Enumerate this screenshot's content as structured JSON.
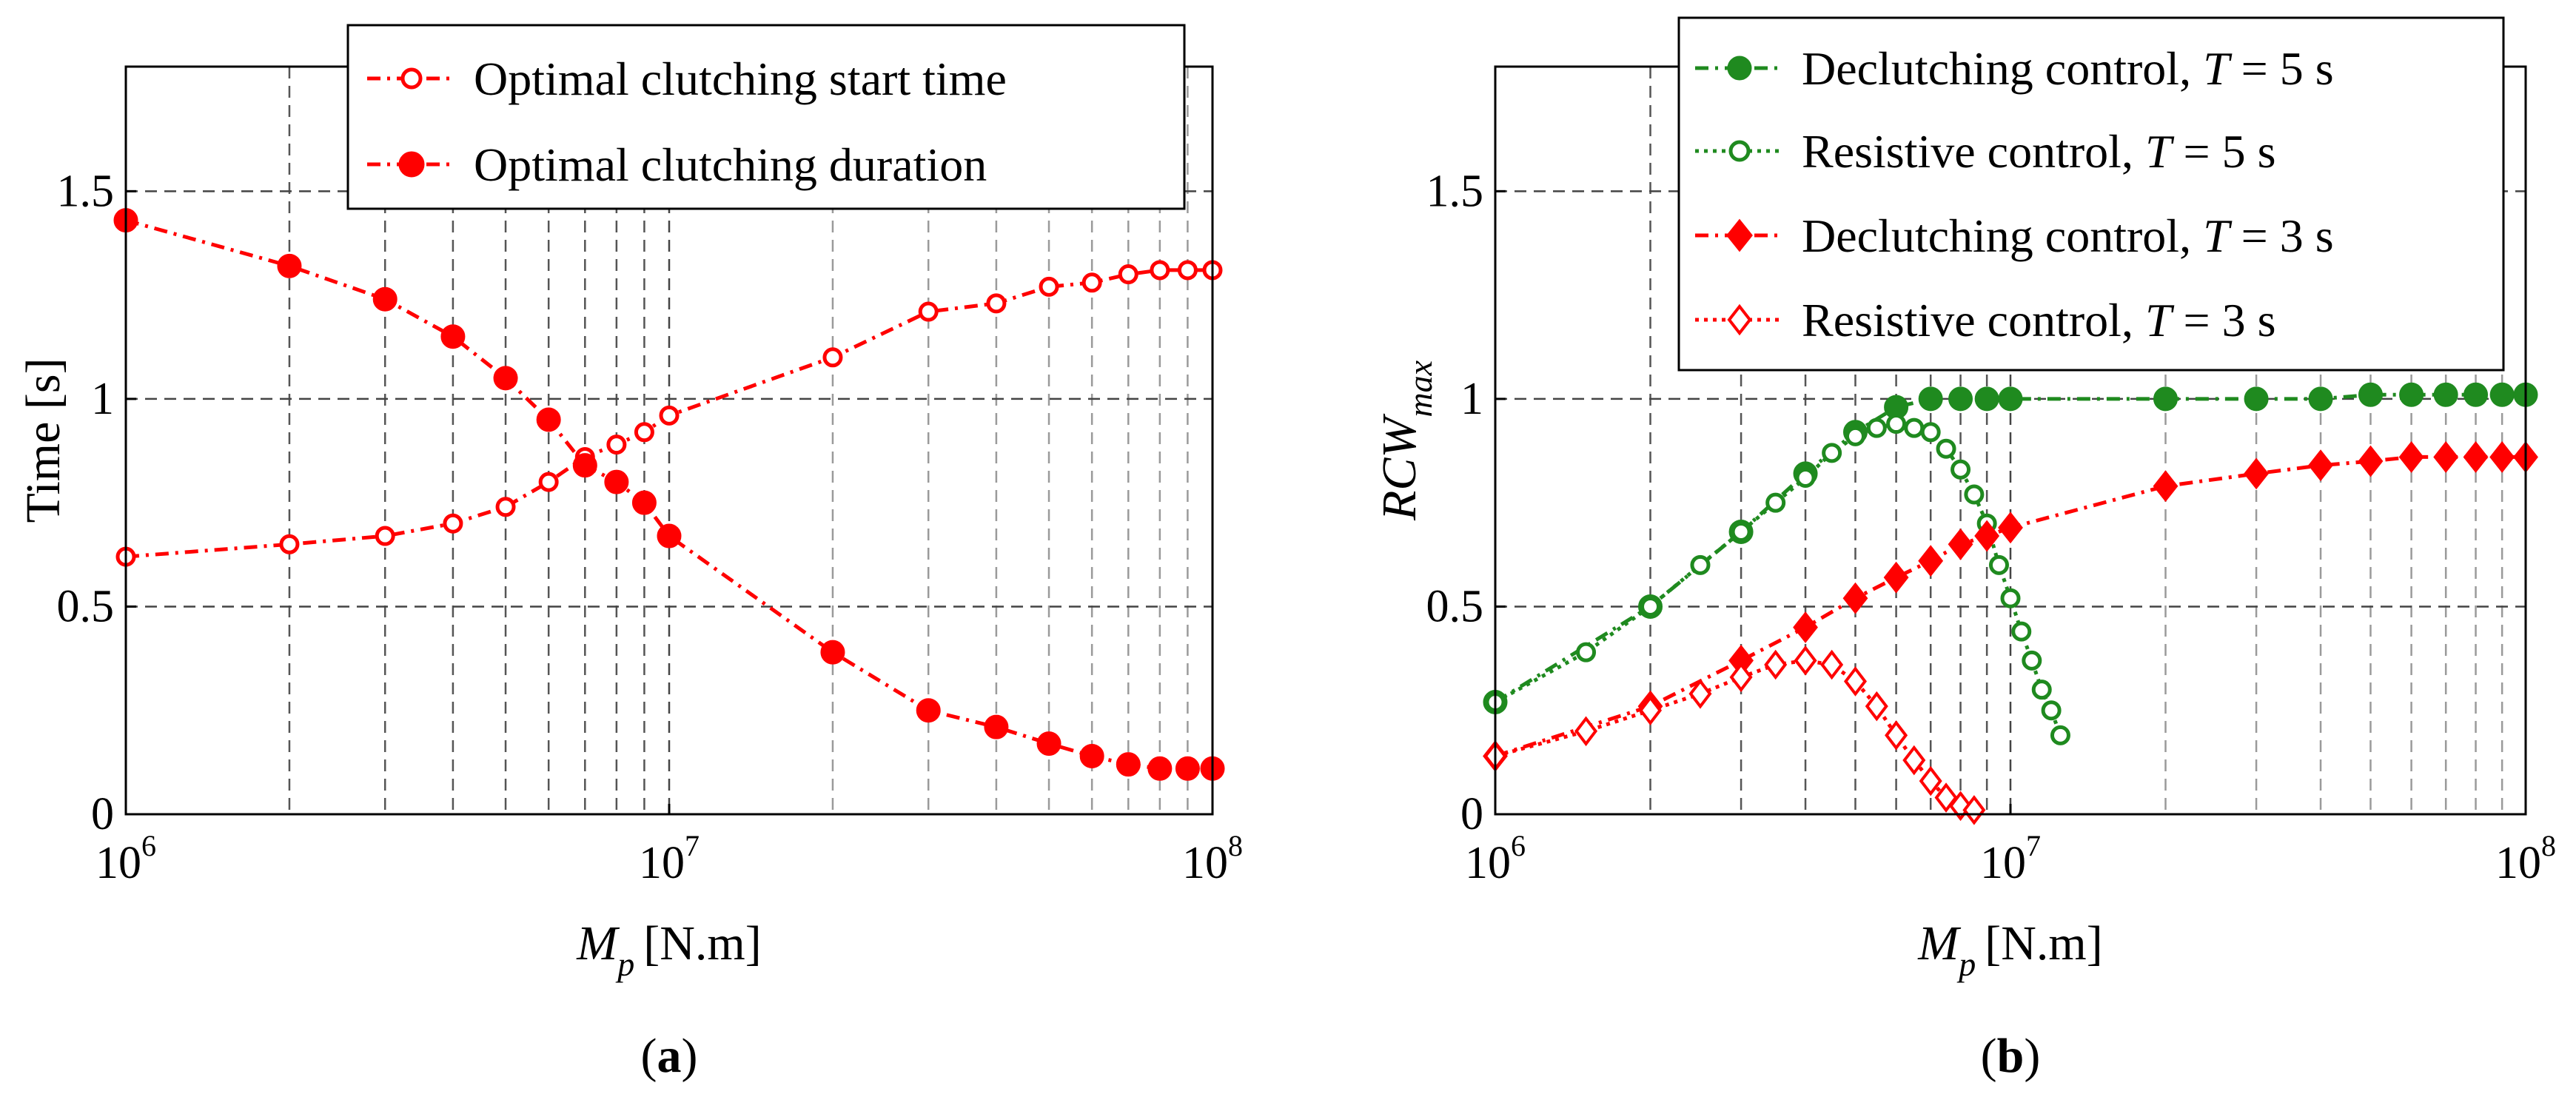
{
  "chart_data": [
    {
      "type": "line",
      "panel": "a",
      "caption": {
        "open": "(",
        "letter": "a",
        "close": ")"
      },
      "xscale": "log",
      "xlim": [
        1000000,
        100000000
      ],
      "ylim": [
        0,
        1.8
      ],
      "xlabel": {
        "symbol": "M",
        "subscript": "p",
        "unit": "[N.m]"
      },
      "ylabel": "Time [s]",
      "xticks": [
        {
          "value": 1000000,
          "base": "10",
          "exp": "6"
        },
        {
          "value": 10000000,
          "base": "10",
          "exp": "7"
        },
        {
          "value": 100000000,
          "base": "10",
          "exp": "8"
        }
      ],
      "yticks": [
        {
          "value": 0,
          "label": "0"
        },
        {
          "value": 0.5,
          "label": "0.5"
        },
        {
          "value": 1,
          "label": "1"
        },
        {
          "value": 1.5,
          "label": "1.5"
        }
      ],
      "grid": true,
      "legend_position": "top-center",
      "series": [
        {
          "name": "Optimal clutching start time",
          "color": "#ff0000",
          "line": "dashdot",
          "marker": "open-circle",
          "x": [
            1000000,
            2000000,
            3000000,
            4000000,
            5000000,
            6000000,
            7000000,
            8000000,
            9000000,
            10000000,
            20000000,
            30000000,
            40000000,
            50000000,
            60000000,
            70000000,
            80000000,
            90000000,
            100000000
          ],
          "y": [
            0.62,
            0.65,
            0.67,
            0.7,
            0.74,
            0.8,
            0.86,
            0.89,
            0.92,
            0.96,
            1.1,
            1.21,
            1.23,
            1.27,
            1.28,
            1.3,
            1.31,
            1.31,
            1.31
          ]
        },
        {
          "name": "Optimal clutching duration",
          "color": "#ff0000",
          "line": "dashdot",
          "marker": "filled-circle",
          "x": [
            1000000,
            2000000,
            3000000,
            4000000,
            5000000,
            6000000,
            7000000,
            8000000,
            9000000,
            10000000,
            20000000,
            30000000,
            40000000,
            50000000,
            60000000,
            70000000,
            80000000,
            90000000,
            100000000
          ],
          "y": [
            1.43,
            1.32,
            1.24,
            1.15,
            1.05,
            0.95,
            0.84,
            0.8,
            0.75,
            0.67,
            0.39,
            0.25,
            0.21,
            0.17,
            0.14,
            0.12,
            0.11,
            0.11,
            0.11
          ]
        }
      ]
    },
    {
      "type": "line",
      "panel": "b",
      "caption": {
        "open": "(",
        "letter": "b",
        "close": ")"
      },
      "xscale": "log",
      "xlim": [
        1000000,
        100000000
      ],
      "ylim": [
        0,
        1.8
      ],
      "xlabel": {
        "symbol": "M",
        "subscript": "p",
        "unit": "[N.m]"
      },
      "ylabel": {
        "symbol": "RCW",
        "subscript": "max"
      },
      "xticks": [
        {
          "value": 1000000,
          "base": "10",
          "exp": "6"
        },
        {
          "value": 10000000,
          "base": "10",
          "exp": "7"
        },
        {
          "value": 100000000,
          "base": "10",
          "exp": "8"
        }
      ],
      "yticks": [
        {
          "value": 0,
          "label": "0"
        },
        {
          "value": 0.5,
          "label": "0.5"
        },
        {
          "value": 1,
          "label": "1"
        },
        {
          "value": 1.5,
          "label": "1.5"
        }
      ],
      "grid": true,
      "legend_position": "top-right",
      "series": [
        {
          "name": "Declutching control, ",
          "var": "T",
          "suffix": " = 5 s",
          "color": "#1f8a1f",
          "line": "dashdot",
          "marker": "filled-circle",
          "x": [
            1000000,
            2000000,
            3000000,
            4000000,
            5000000,
            6000000,
            7000000,
            8000000,
            9000000,
            10000000,
            20000000,
            30000000,
            40000000,
            50000000,
            60000000,
            70000000,
            80000000,
            90000000,
            100000000
          ],
          "y": [
            0.27,
            0.5,
            0.68,
            0.82,
            0.92,
            0.98,
            1.0,
            1.0,
            1.0,
            1.0,
            1.0,
            1.0,
            1.0,
            1.01,
            1.01,
            1.01,
            1.01,
            1.01,
            1.01
          ]
        },
        {
          "name": "Resistive control, ",
          "var": "T",
          "suffix": " = 5 s",
          "color": "#1f8a1f",
          "line": "dotted",
          "marker": "open-circle",
          "x": [
            1000000,
            1500000,
            2000000,
            2500000,
            3000000,
            3500000,
            4000000,
            4500000,
            5000000,
            5500000,
            6000000,
            6500000,
            7000000,
            7500000,
            8000000,
            8500000,
            9000000,
            9500000,
            10000000,
            10500000,
            11000000,
            11500000,
            12000000,
            12500000
          ],
          "y": [
            0.27,
            0.39,
            0.5,
            0.6,
            0.68,
            0.75,
            0.81,
            0.87,
            0.91,
            0.93,
            0.94,
            0.93,
            0.92,
            0.88,
            0.83,
            0.77,
            0.7,
            0.6,
            0.52,
            0.44,
            0.37,
            0.3,
            0.25,
            0.19
          ]
        },
        {
          "name": "Declutching control, ",
          "var": "T",
          "suffix": " = 3 s",
          "color": "#ff0000",
          "line": "dashdot",
          "marker": "filled-diamond",
          "x": [
            1000000,
            2000000,
            3000000,
            4000000,
            5000000,
            6000000,
            7000000,
            8000000,
            9000000,
            10000000,
            20000000,
            30000000,
            40000000,
            50000000,
            60000000,
            70000000,
            80000000,
            90000000,
            100000000
          ],
          "y": [
            0.14,
            0.26,
            0.37,
            0.45,
            0.52,
            0.57,
            0.61,
            0.65,
            0.67,
            0.69,
            0.79,
            0.82,
            0.84,
            0.85,
            0.86,
            0.86,
            0.86,
            0.86,
            0.86
          ]
        },
        {
          "name": "Resistive control, ",
          "var": "T",
          "suffix": " = 3 s",
          "color": "#ff0000",
          "line": "dotted",
          "marker": "open-diamond",
          "x": [
            1000000,
            1500000,
            2000000,
            2500000,
            3000000,
            3500000,
            4000000,
            4500000,
            5000000,
            5500000,
            6000000,
            6500000,
            7000000,
            7500000,
            8000000,
            8500000
          ],
          "y": [
            0.14,
            0.2,
            0.25,
            0.29,
            0.33,
            0.36,
            0.37,
            0.36,
            0.32,
            0.26,
            0.19,
            0.13,
            0.08,
            0.04,
            0.02,
            0.01
          ]
        }
      ]
    }
  ]
}
